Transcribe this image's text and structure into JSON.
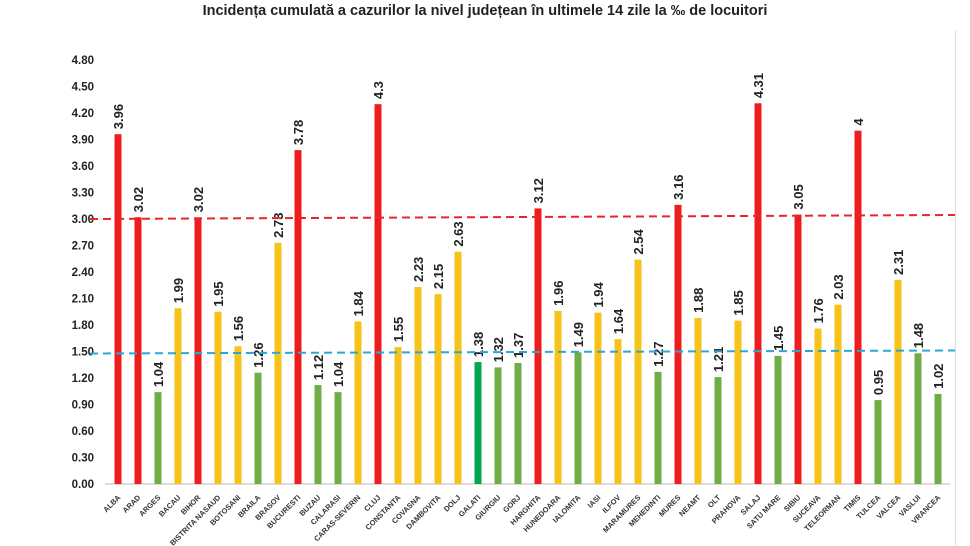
{
  "chart_data": {
    "type": "bar",
    "title": "Incidența cumulată a cazurilor la nivel județean în ultimele 14 zile la ‰ de locuitori",
    "xlabel": "",
    "ylabel": "",
    "ylim": [
      0,
      4.8
    ],
    "yticks": [
      "0.00",
      "0.30",
      "0.60",
      "0.90",
      "1.20",
      "1.50",
      "1.80",
      "2.10",
      "2.40",
      "2.70",
      "3.00",
      "3.30",
      "3.60",
      "3.90",
      "4.20",
      "4.50",
      "4.80"
    ],
    "categories": [
      "ALBA",
      "ARAD",
      "ARGES",
      "BACAU",
      "BIHOR",
      "BISTRITA NASAUD",
      "BOTOSANI",
      "BRAILA",
      "BRASOV",
      "BUCURESTI",
      "BUZAU",
      "CALARASI",
      "CARAS-SEVERIN",
      "CLUJ",
      "CONSTANTA",
      "COVASNA",
      "DAMBOVITA",
      "DOLJ",
      "GALATI",
      "GIURGIU",
      "GORJ",
      "HARGHITA",
      "HUNEDOARA",
      "IALOMITA",
      "IASI",
      "ILFOV",
      "MARAMURES",
      "MEHEDINTI",
      "MURES",
      "NEAMT",
      "OLT",
      "PRAHOVA",
      "SALAJ",
      "SATU MARE",
      "SIBIU",
      "SUCEAVA",
      "TELEORMAN",
      "TIMIS",
      "TULCEA",
      "VALCEA",
      "VASLUI",
      "VRANCEA"
    ],
    "values": [
      3.96,
      3.02,
      1.04,
      1.99,
      3.02,
      1.95,
      1.56,
      1.26,
      2.73,
      3.78,
      1.12,
      1.04,
      1.84,
      4.3,
      1.55,
      2.23,
      2.15,
      2.63,
      1.38,
      1.32,
      1.37,
      3.12,
      1.96,
      1.49,
      1.94,
      1.64,
      2.54,
      1.27,
      3.16,
      1.88,
      1.21,
      1.85,
      4.31,
      1.45,
      3.05,
      1.76,
      2.03,
      4,
      0.95,
      2.31,
      1.48,
      1.02
    ],
    "value_labels": [
      "3.96",
      "3.02",
      "1.04",
      "1.99",
      "3.02",
      "1.95",
      "1.56",
      "1.26",
      "2.73",
      "3.78",
      "1.12",
      "1.04",
      "1.84",
      "4.3",
      "1.55",
      "2.23",
      "2.15",
      "2.63",
      "1.38",
      "1.32",
      "1.37",
      "3.12",
      "1.96",
      "1.49",
      "1.94",
      "1.64",
      "2.54",
      "1.27",
      "3.16",
      "1.88",
      "1.21",
      "1.85",
      "4.31",
      "1.45",
      "3.05",
      "1.76",
      "2.03",
      "4",
      "0.95",
      "2.31",
      "1.48",
      "1.02"
    ],
    "reference_lines": [
      {
        "value": 3.0,
        "color": "#e8262a",
        "style": "dashed"
      },
      {
        "value": 1.5,
        "color": "#2aa7d8",
        "style": "dashed"
      }
    ],
    "colors": {
      "high": "#ee1c1c",
      "medium": "#f7c21a",
      "low": "#70ad47",
      "highlight": "#00a651"
    },
    "highlight_category": "GALATI",
    "grid": false,
    "legend": "none"
  }
}
